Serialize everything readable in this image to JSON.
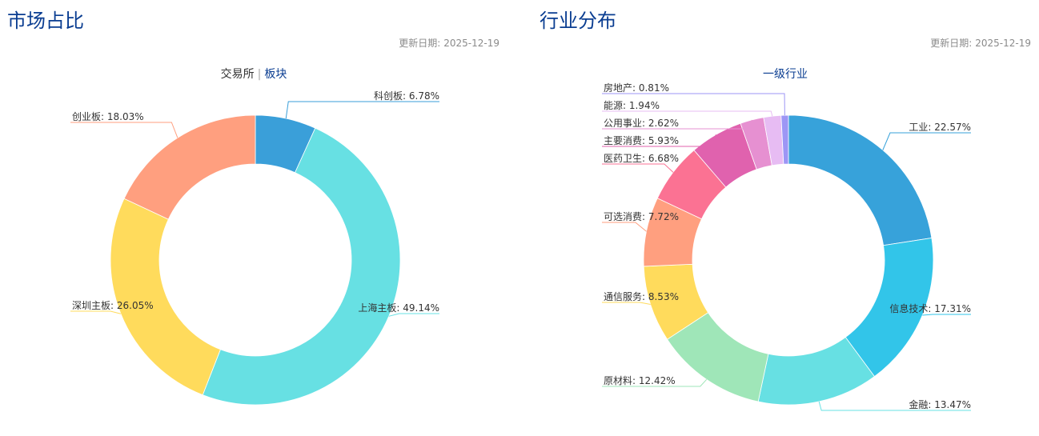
{
  "left": {
    "title": "市场占比",
    "update_label": "更新日期:",
    "update_date": "2025-12-19",
    "tabs": [
      {
        "label": "交易所",
        "active": false
      },
      {
        "label": "板块",
        "active": true
      }
    ]
  },
  "right": {
    "title": "行业分布",
    "update_label": "更新日期:",
    "update_date": "2025-12-19",
    "tabs": [
      {
        "label": "一级行业",
        "active": true
      }
    ]
  },
  "chart_data": [
    {
      "type": "pie",
      "donut": true,
      "categories": [
        "科创板",
        "上海主板",
        "深圳主板",
        "创业板"
      ],
      "values": [
        6.78,
        49.14,
        26.05,
        18.03
      ],
      "unit": "%",
      "colors": [
        "#3a9fd9",
        "#67e0e3",
        "#ffdb5c",
        "#ff9f7f"
      ]
    },
    {
      "type": "pie",
      "donut": true,
      "categories": [
        "工业",
        "信息技术",
        "金融",
        "原材料",
        "通信服务",
        "可选消费",
        "医药卫生",
        "主要消费",
        "公用事业",
        "能源",
        "房地产"
      ],
      "values": [
        22.57,
        17.31,
        13.47,
        12.42,
        8.53,
        7.72,
        6.68,
        5.93,
        2.62,
        1.94,
        0.81
      ],
      "unit": "%",
      "colors": [
        "#37a2da",
        "#32c5e9",
        "#67e0e3",
        "#9fe6b8",
        "#ffdb5c",
        "#ff9f7f",
        "#fb7293",
        "#e062ae",
        "#e690d1",
        "#e7bcf3",
        "#9d96f5"
      ]
    }
  ]
}
